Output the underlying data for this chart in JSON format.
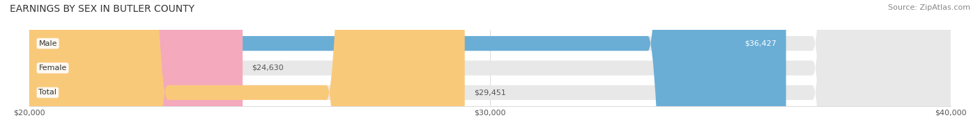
{
  "title": "EARNINGS BY SEX IN BUTLER COUNTY",
  "source": "Source: ZipAtlas.com",
  "categories": [
    "Male",
    "Female",
    "Total"
  ],
  "values": [
    36427,
    24630,
    29451
  ],
  "bar_colors": [
    "#6aaed6",
    "#f4a9bc",
    "#f9c97a"
  ],
  "label_inside": [
    true,
    false,
    false
  ],
  "x_min": 20000,
  "x_max": 40000,
  "x_ticks": [
    20000,
    30000,
    40000
  ],
  "x_tick_labels": [
    "$20,000",
    "$30,000",
    "$40,000"
  ],
  "background_color": "#ffffff",
  "bar_bg_color": "#e8e8e8",
  "title_fontsize": 10,
  "source_fontsize": 8,
  "tick_fontsize": 8,
  "label_fontsize": 8,
  "category_fontsize": 8
}
